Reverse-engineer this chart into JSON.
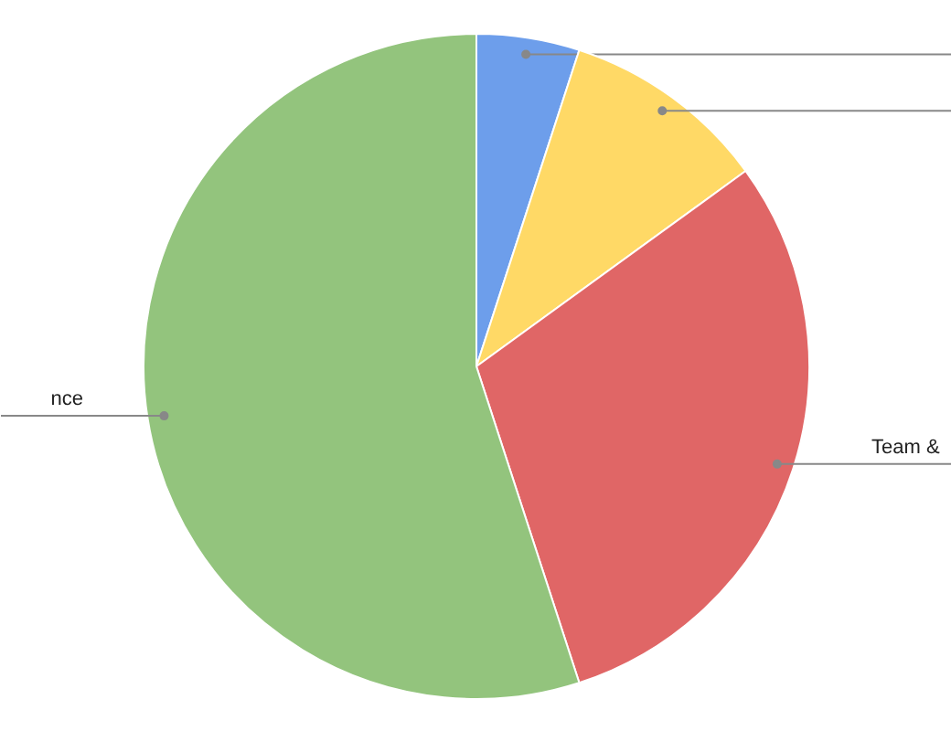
{
  "chart_data": {
    "type": "pie",
    "categories": [
      null,
      null,
      "Team &",
      "nce"
    ],
    "values": [
      5,
      10,
      30,
      55
    ],
    "colors": [
      "#6d9eeb",
      "#ffd966",
      "#e06666",
      "#93c47d"
    ]
  }
}
